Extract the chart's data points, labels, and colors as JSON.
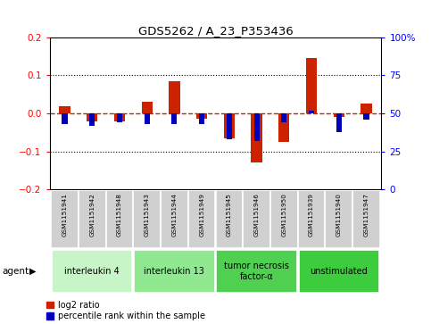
{
  "title": "GDS5262 / A_23_P353436",
  "samples": [
    "GSM1151941",
    "GSM1151942",
    "GSM1151948",
    "GSM1151943",
    "GSM1151944",
    "GSM1151949",
    "GSM1151945",
    "GSM1151946",
    "GSM1151950",
    "GSM1151939",
    "GSM1151940",
    "GSM1151947"
  ],
  "log2_ratio": [
    0.02,
    -0.02,
    -0.02,
    0.03,
    0.085,
    -0.015,
    -0.065,
    -0.13,
    -0.075,
    0.145,
    -0.01,
    0.025
  ],
  "percentile": [
    43,
    42,
    44,
    43,
    43,
    43,
    33,
    32,
    44,
    52,
    38,
    46
  ],
  "agents": [
    {
      "label": "interleukin 4",
      "start": 0,
      "end": 3,
      "color": "#c8f5c8"
    },
    {
      "label": "interleukin 13",
      "start": 3,
      "end": 6,
      "color": "#90e890"
    },
    {
      "label": "tumor necrosis\nfactor-α",
      "start": 6,
      "end": 9,
      "color": "#50d050"
    },
    {
      "label": "unstimulated",
      "start": 9,
      "end": 12,
      "color": "#3dcc3d"
    }
  ],
  "ylim": [
    -0.2,
    0.2
  ],
  "yticks_left": [
    -0.2,
    -0.1,
    0.0,
    0.1,
    0.2
  ],
  "yticks_right": [
    0,
    25,
    50,
    75,
    100
  ],
  "bar_color_red": "#cc2200",
  "bar_color_blue": "#0000bb",
  "dashed_line_color": "#cc2200",
  "grid_color": "#000000",
  "bg_color": "#ffffff",
  "sample_box_color": "#d0d0d0",
  "legend_red_label": "log2 ratio",
  "legend_blue_label": "percentile rank within the sample",
  "agent_label": "agent"
}
